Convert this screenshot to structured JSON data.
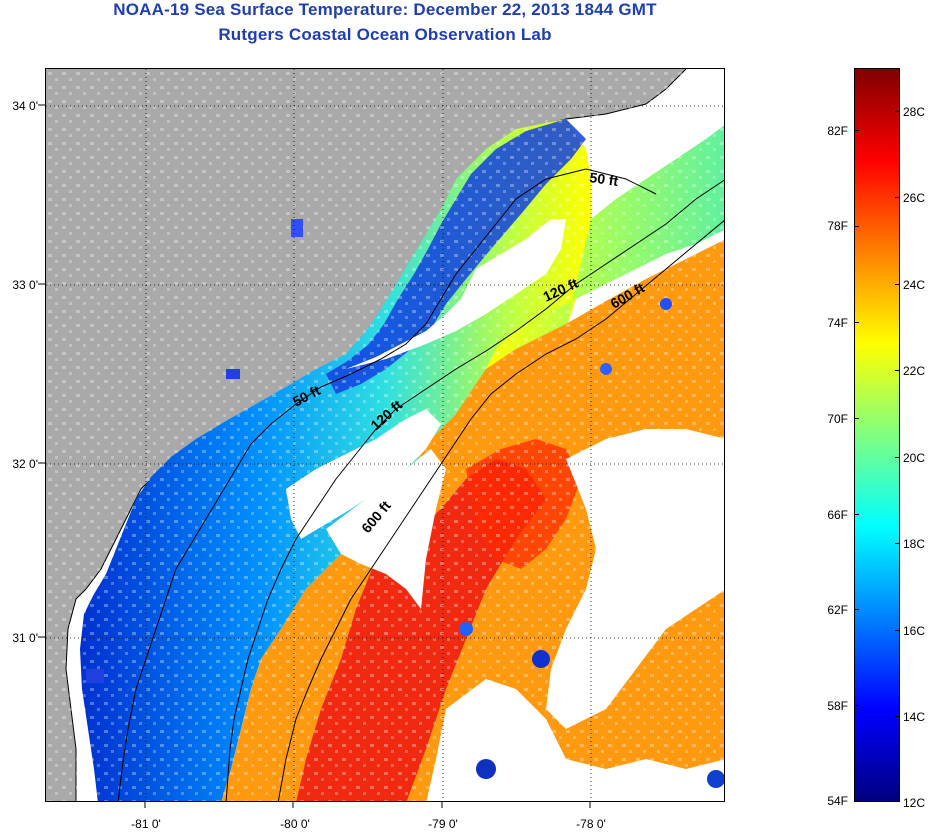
{
  "title": {
    "line1": "NOAA-19 Sea Surface Temperature:  December 22, 2013 1844 GMT",
    "line2": "Rutgers Coastal Ocean Observation Lab"
  },
  "map": {
    "lat_ticks": [
      "34 0'",
      "33 0'",
      "32 0'",
      "31 0'"
    ],
    "lon_ticks": [
      "-81 0'",
      "-80 0'",
      "-79 0'",
      "-78 0'"
    ],
    "contour_labels": [
      "50 ft",
      "120 ft",
      "600 ft",
      "50 ft",
      "120 ft",
      "600 ft"
    ],
    "colors": {
      "land": "#a9a9a9",
      "no_data": "#ffffff",
      "cold": "#0000c0",
      "warm": "#d00000"
    }
  },
  "colorbar": {
    "fahrenheit_labels": [
      "82F",
      "78F",
      "74F",
      "70F",
      "66F",
      "62F",
      "58F",
      "54F"
    ],
    "celsius_labels": [
      "28C",
      "26C",
      "24C",
      "22C",
      "20C",
      "18C",
      "16C",
      "14C",
      "12C"
    ],
    "gradient_stops": [
      "#800000",
      "#ff0000",
      "#ff8000",
      "#ffff00",
      "#80ff80",
      "#00ffff",
      "#0080ff",
      "#0000ff",
      "#000080"
    ]
  }
}
